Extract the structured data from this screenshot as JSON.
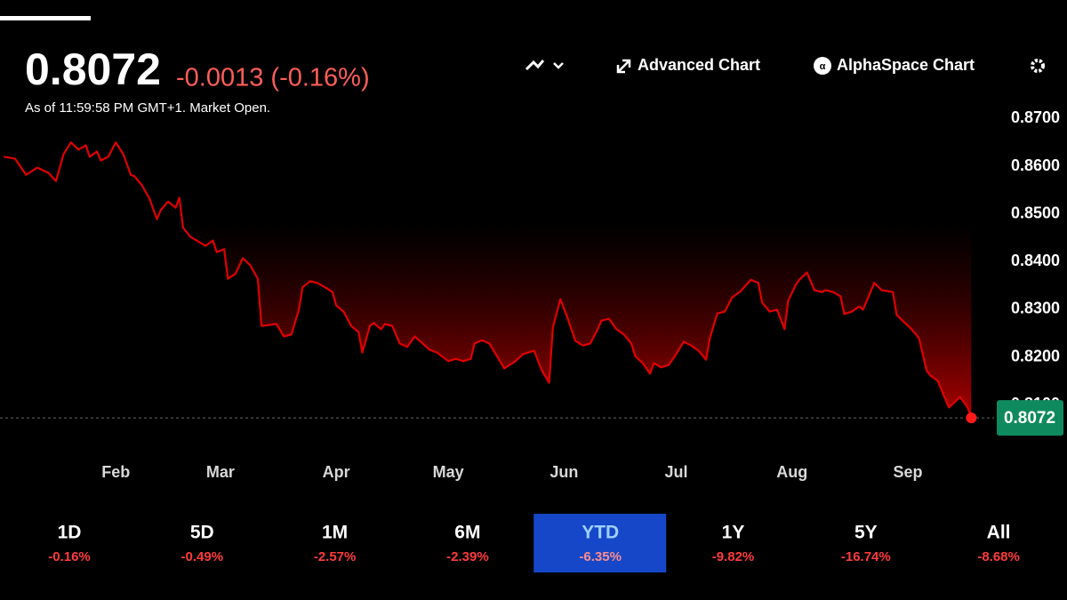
{
  "header": {
    "price": "0.8072",
    "change": "-0.0013 (-0.16%)",
    "timestamp": "As of 11:59:58 PM GMT+1. Market Open."
  },
  "toolbar": {
    "advanced": "Advanced Chart",
    "alphaspace": "AlphaSpace Chart"
  },
  "chart_data": {
    "type": "line",
    "x": [
      2,
      5,
      8,
      11,
      14,
      16,
      18,
      20,
      22,
      24,
      25,
      27,
      28,
      30,
      32,
      34,
      36,
      37,
      39,
      41,
      43,
      44,
      46,
      48,
      49,
      50,
      52,
      56,
      58,
      59,
      61,
      62,
      64,
      66,
      68,
      70,
      71,
      75,
      77,
      79,
      81,
      82,
      84,
      86,
      88,
      90,
      91,
      93,
      95,
      97,
      98,
      100,
      101,
      103,
      104,
      106,
      108,
      110,
      112,
      116,
      118,
      121,
      123,
      125,
      127,
      128,
      130,
      132,
      134,
      136,
      139,
      141,
      144,
      146,
      148,
      149,
      151,
      153,
      155,
      157,
      159,
      161,
      162,
      164,
      166,
      168,
      170,
      171,
      173,
      175,
      176,
      178,
      180,
      182,
      184,
      186,
      188,
      190,
      191,
      193,
      195,
      197,
      199,
      202,
      204,
      205,
      207,
      209,
      211,
      212,
      214,
      215,
      217,
      219,
      221,
      222,
      224,
      226,
      227,
      229,
      231,
      232,
      235,
      237,
      240,
      241,
      245,
      247,
      249,
      250,
      252,
      254,
      255,
      258,
      260,
      261
    ],
    "series": [
      {
        "color": "#e00000",
        "values": [
          0.862,
          0.8616,
          0.8582,
          0.8597,
          0.8586,
          0.8569,
          0.8625,
          0.865,
          0.8635,
          0.8644,
          0.862,
          0.8631,
          0.8612,
          0.862,
          0.865,
          0.8625,
          0.8582,
          0.8579,
          0.856,
          0.8532,
          0.8489,
          0.8508,
          0.8526,
          0.8513,
          0.8534,
          0.8471,
          0.8452,
          0.8433,
          0.8444,
          0.842,
          0.8426,
          0.8364,
          0.8374,
          0.8407,
          0.8392,
          0.8364,
          0.8265,
          0.8269,
          0.8243,
          0.8247,
          0.8299,
          0.8346,
          0.8359,
          0.8355,
          0.8346,
          0.8336,
          0.8308,
          0.8295,
          0.8265,
          0.8252,
          0.8209,
          0.8265,
          0.8271,
          0.8258,
          0.8269,
          0.8265,
          0.8228,
          0.8221,
          0.8243,
          0.8215,
          0.8209,
          0.8191,
          0.8196,
          0.8191,
          0.8196,
          0.8228,
          0.8235,
          0.8228,
          0.8202,
          0.8176,
          0.8191,
          0.8206,
          0.8213,
          0.8172,
          0.8146,
          0.8262,
          0.8321,
          0.828,
          0.8234,
          0.8224,
          0.8228,
          0.8258,
          0.8276,
          0.828,
          0.8258,
          0.8247,
          0.8228,
          0.8202,
          0.8187,
          0.8165,
          0.8187,
          0.8178,
          0.8183,
          0.8206,
          0.8232,
          0.8224,
          0.8213,
          0.8194,
          0.8239,
          0.8291,
          0.8295,
          0.8325,
          0.8336,
          0.8362,
          0.8355,
          0.8314,
          0.8295,
          0.8299,
          0.8258,
          0.8318,
          0.8351,
          0.8362,
          0.8377,
          0.834,
          0.8336,
          0.834,
          0.8336,
          0.8327,
          0.829,
          0.8295,
          0.8306,
          0.8299,
          0.8355,
          0.834,
          0.8336,
          0.8288,
          0.8258,
          0.8239,
          0.8172,
          0.8161,
          0.815,
          0.8112,
          0.8094,
          0.8116,
          0.8094,
          0.8072
        ]
      }
    ],
    "xlim": [
      1,
      264
    ],
    "xticks": [
      {
        "value": 32,
        "label": "Feb"
      },
      {
        "value": 60,
        "label": "Mar"
      },
      {
        "value": 91,
        "label": "Apr"
      },
      {
        "value": 121,
        "label": "May"
      },
      {
        "value": 152,
        "label": "Jun"
      },
      {
        "value": 182,
        "label": "Jul"
      },
      {
        "value": 213,
        "label": "Aug"
      },
      {
        "value": 244,
        "label": "Sep"
      }
    ],
    "ylim": [
      0.8035,
      0.8725
    ],
    "yticks": [
      {
        "value": 0.81,
        "label": "0.8100"
      },
      {
        "value": 0.82,
        "label": "0.8200"
      },
      {
        "value": 0.83,
        "label": "0.8300"
      },
      {
        "value": 0.84,
        "label": "0.8400"
      },
      {
        "value": 0.85,
        "label": "0.8500"
      },
      {
        "value": 0.86,
        "label": "0.8600"
      },
      {
        "value": 0.87,
        "label": "0.8700"
      }
    ]
  },
  "periods": [
    {
      "label": "1D",
      "change": "-0.16%"
    },
    {
      "label": "5D",
      "change": "-0.49%"
    },
    {
      "label": "1M",
      "change": "-2.57%"
    },
    {
      "label": "6M",
      "change": "-2.39%"
    },
    {
      "label": "YTD",
      "change": "-6.35%"
    },
    {
      "label": "1Y",
      "change": "-9.82%"
    },
    {
      "label": "5Y",
      "change": "-16.74%"
    },
    {
      "label": "All",
      "change": "-8.68%"
    }
  ],
  "active_period": "YTD"
}
